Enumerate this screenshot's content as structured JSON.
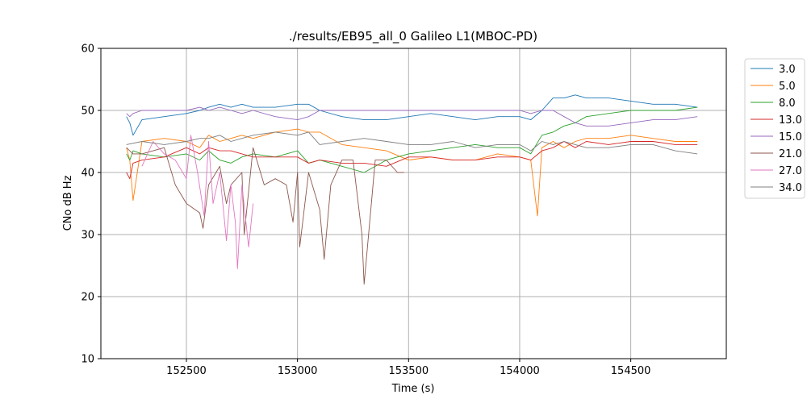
{
  "chart_data": {
    "type": "line",
    "title": "./results/EB95_all_0 Galileo L1(MBOC-PD)",
    "xlabel": "Time (s)",
    "ylabel": "CNo dB Hz",
    "xlim": [
      152115,
      154930
    ],
    "ylim": [
      10,
      60
    ],
    "xticks": [
      152500,
      153000,
      153500,
      154000,
      154500
    ],
    "yticks": [
      10,
      20,
      30,
      40,
      50,
      60
    ],
    "grid": true,
    "legend_position": "outside-right",
    "series": [
      {
        "name": "3.0",
        "color": "#1f77b4",
        "x": [
          152230,
          152245,
          152260,
          152300,
          152400,
          152500,
          152560,
          152600,
          152650,
          152700,
          152750,
          152800,
          152900,
          153000,
          153050,
          153100,
          153200,
          153300,
          153400,
          153500,
          153600,
          153700,
          153800,
          153900,
          154000,
          154050,
          154100,
          154150,
          154200,
          154250,
          154300,
          154400,
          154500,
          154600,
          154700,
          154800
        ],
        "values": [
          49,
          48,
          46,
          48.5,
          49,
          49.5,
          50,
          50.5,
          51,
          50.5,
          51,
          50.5,
          50.5,
          51,
          51,
          50,
          49,
          48.5,
          48.5,
          49,
          49.5,
          49,
          48.5,
          49,
          49,
          48.5,
          50,
          52,
          52,
          52.5,
          52,
          52,
          51.5,
          51,
          51,
          50.5
        ]
      },
      {
        "name": "5.0",
        "color": "#ff7f0e",
        "x": [
          152230,
          152245,
          152260,
          152300,
          152400,
          152500,
          152560,
          152600,
          152650,
          152700,
          152750,
          152800,
          152900,
          153000,
          153050,
          153100,
          153200,
          153300,
          153400,
          153500,
          153600,
          153700,
          153800,
          153900,
          154000,
          154050,
          154080,
          154100,
          154150,
          154200,
          154250,
          154300,
          154400,
          154500,
          154600,
          154700,
          154800
        ],
        "values": [
          44,
          42,
          35.5,
          45,
          45.5,
          45,
          44,
          46,
          45,
          45.5,
          46,
          45.5,
          46.5,
          47,
          46.5,
          46.5,
          44.5,
          44,
          43.5,
          42,
          42.5,
          42,
          42,
          43,
          42.5,
          42,
          33,
          44,
          45,
          44,
          45,
          45.5,
          45.5,
          46,
          45.5,
          45,
          45
        ]
      },
      {
        "name": "8.0",
        "color": "#2ca02c",
        "x": [
          152230,
          152245,
          152260,
          152300,
          152400,
          152500,
          152560,
          152600,
          152650,
          152700,
          152750,
          152800,
          152900,
          153000,
          153050,
          153100,
          153200,
          153300,
          153400,
          153500,
          153600,
          153700,
          153800,
          153900,
          154000,
          154050,
          154100,
          154150,
          154200,
          154250,
          154300,
          154400,
          154500,
          154600,
          154700,
          154800
        ],
        "values": [
          43,
          42,
          43.5,
          43,
          42.5,
          43,
          42,
          43.5,
          42,
          41.5,
          42.5,
          43,
          42.5,
          43.5,
          41.5,
          42,
          41,
          40,
          42,
          43,
          43.5,
          44,
          44.5,
          44,
          44,
          43,
          46,
          46.5,
          47.5,
          48,
          49,
          49.5,
          50,
          50,
          50,
          50.5
        ]
      },
      {
        "name": "13.0",
        "color": "#d62728",
        "x": [
          152230,
          152245,
          152260,
          152300,
          152400,
          152500,
          152560,
          152600,
          152650,
          152700,
          152750,
          152800,
          152900,
          153000,
          153050,
          153100,
          153200,
          153300,
          153400,
          153500,
          153600,
          153700,
          153800,
          153900,
          154000,
          154050,
          154100,
          154150,
          154200,
          154250,
          154300,
          154400,
          154500,
          154600,
          154700,
          154800
        ],
        "values": [
          40,
          39,
          41.5,
          42,
          42.5,
          44,
          43,
          44,
          43.5,
          43.5,
          43,
          42.5,
          42.5,
          42.5,
          41.5,
          42,
          41.5,
          41.5,
          41,
          42.5,
          42.5,
          42,
          42,
          42.5,
          42.5,
          42,
          43.5,
          44,
          45,
          44,
          45,
          44.5,
          45,
          45,
          44.5,
          44.5
        ]
      },
      {
        "name": "15.0",
        "color": "#9467bd",
        "x": [
          152230,
          152245,
          152260,
          152300,
          152400,
          152500,
          152560,
          152600,
          152650,
          152700,
          152750,
          152800,
          152900,
          153000,
          153050,
          153100,
          153200,
          153300,
          153400,
          153500,
          153600,
          153700,
          153800,
          153900,
          154000,
          154050,
          154100,
          154150,
          154200,
          154250,
          154300,
          154400,
          154500,
          154600,
          154700,
          154800
        ],
        "values": [
          49.5,
          49,
          49.5,
          50,
          50,
          50,
          50.5,
          50,
          50.5,
          50,
          49.5,
          50,
          49,
          48.5,
          49,
          50,
          50,
          50,
          50,
          50,
          50,
          50,
          50,
          50,
          50,
          49.5,
          50,
          50,
          49,
          48,
          47.5,
          47.5,
          48,
          48.5,
          48.5,
          49
        ]
      },
      {
        "name": "21.0",
        "color": "#8c564b",
        "x": [
          152230,
          152260,
          152300,
          152400,
          152450,
          152500,
          152560,
          152575,
          152600,
          152650,
          152680,
          152700,
          152750,
          152760,
          152800,
          152850,
          152900,
          152950,
          152980,
          153000,
          153010,
          153050,
          153100,
          153120,
          153150,
          153200,
          153250,
          153290,
          153300,
          153350,
          153400,
          153450,
          153480
        ],
        "values": [
          44,
          43,
          43,
          44,
          38,
          35,
          33.5,
          31,
          38,
          41,
          35,
          38,
          40,
          30,
          44,
          38,
          39,
          38,
          32,
          40,
          28,
          40,
          34,
          26,
          38,
          42,
          42,
          30,
          22,
          42,
          42,
          40,
          40
        ]
      },
      {
        "name": "27.0",
        "color": "#e377c2",
        "x": [
          152300,
          152350,
          152400,
          152450,
          152500,
          152520,
          152550,
          152580,
          152600,
          152620,
          152650,
          152680,
          152700,
          152720,
          152730,
          152750,
          152780,
          152800
        ],
        "values": [
          41,
          45,
          43,
          42,
          39,
          46,
          40,
          33,
          45,
          35,
          40,
          29,
          38,
          32,
          24.5,
          38,
          28,
          35
        ]
      },
      {
        "name": "34.0",
        "color": "#7f7f7f",
        "x": [
          152230,
          152300,
          152400,
          152500,
          152560,
          152600,
          152650,
          152700,
          152750,
          152800,
          152900,
          153000,
          153050,
          153100,
          153200,
          153300,
          153400,
          153500,
          153600,
          153700,
          153800,
          153900,
          154000,
          154050,
          154100,
          154150,
          154200,
          154250,
          154300,
          154400,
          154500,
          154600,
          154700,
          154800
        ],
        "values": [
          44.5,
          45,
          44.5,
          45,
          45.5,
          45.5,
          46,
          45,
          45.5,
          46,
          46.5,
          46,
          46.5,
          44.5,
          45,
          45.5,
          45,
          44.5,
          44.5,
          45,
          44,
          44.5,
          44.5,
          43.5,
          45,
          44.5,
          45,
          44.5,
          44,
          44,
          44.5,
          44.5,
          43.5,
          43
        ]
      }
    ]
  }
}
